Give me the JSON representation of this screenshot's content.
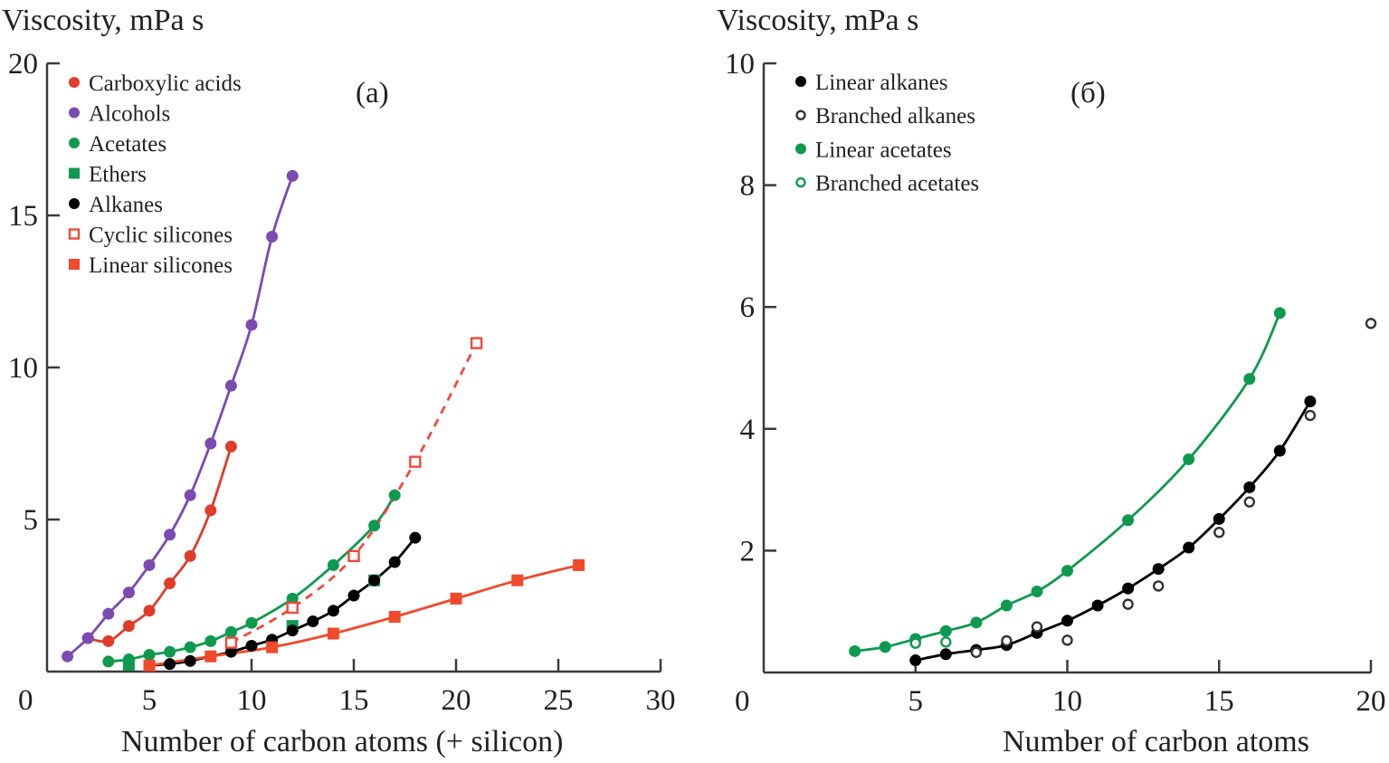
{
  "chart_data": [
    {
      "type": "line",
      "panel_label": "(a)",
      "title": "",
      "ylabel": "Viscosity, mPa s",
      "xlabel": "Number of carbon atoms (+ silicon)",
      "xlim": [
        0,
        30
      ],
      "ylim": [
        0,
        20
      ],
      "xticks": [
        0,
        5,
        10,
        15,
        20,
        25,
        30
      ],
      "yticks": [
        0,
        5,
        10,
        15,
        20
      ],
      "ytick_labels_shown": [
        "5",
        "10",
        "15",
        "20"
      ],
      "grid": false,
      "legend_position": "top-left",
      "series": [
        {
          "name": "Carboxylic acids",
          "color": "#e03c2a",
          "marker": "circle-filled",
          "line": "solid",
          "x": [
            2,
            3,
            4,
            5,
            6,
            7,
            8,
            9
          ],
          "y": [
            1.1,
            1.0,
            1.5,
            2.0,
            2.9,
            3.8,
            5.3,
            7.4
          ]
        },
        {
          "name": "Alcohols",
          "color": "#7a4bb0",
          "marker": "circle-filled",
          "line": "solid",
          "x": [
            1,
            2,
            3,
            4,
            5,
            6,
            7,
            8,
            9,
            10,
            11,
            12
          ],
          "y": [
            0.5,
            1.1,
            1.9,
            2.6,
            3.5,
            4.5,
            5.8,
            7.5,
            9.4,
            11.4,
            14.3,
            16.3
          ]
        },
        {
          "name": "Acetates",
          "color": "#0e9a4e",
          "marker": "circle-filled",
          "line": "solid",
          "x": [
            3,
            4,
            5,
            6,
            7,
            8,
            9,
            10,
            12,
            14,
            16,
            17
          ],
          "y": [
            0.33,
            0.4,
            0.55,
            0.65,
            0.8,
            1.0,
            1.3,
            1.6,
            2.4,
            3.5,
            4.8,
            5.8
          ]
        },
        {
          "name": "Ethers",
          "color": "#0e9a4e",
          "marker": "square-filled",
          "line": "none",
          "x": [
            4,
            12,
            16
          ],
          "y": [
            0.22,
            1.5,
            3.0
          ]
        },
        {
          "name": "Alkanes",
          "color": "#000000",
          "marker": "circle-filled",
          "line": "solid",
          "x": [
            5,
            6,
            7,
            8,
            9,
            10,
            11,
            12,
            13,
            14,
            15,
            16,
            17,
            18
          ],
          "y": [
            0.2,
            0.25,
            0.35,
            0.5,
            0.65,
            0.85,
            1.05,
            1.35,
            1.65,
            2.0,
            2.5,
            3.0,
            3.6,
            4.4
          ]
        },
        {
          "name": "Cyclic silicones",
          "color": "#f04a3a",
          "marker": "square-open",
          "line": "dashed",
          "x": [
            9,
            12,
            15,
            18,
            21
          ],
          "y": [
            0.95,
            2.1,
            3.8,
            6.9,
            10.8
          ]
        },
        {
          "name": "Linear silicones",
          "color": "#f04a2a",
          "marker": "square-filled",
          "line": "solid",
          "x": [
            5,
            8,
            11,
            14,
            17,
            20,
            23,
            26
          ],
          "y": [
            0.2,
            0.5,
            0.8,
            1.25,
            1.8,
            2.4,
            3.0,
            3.5
          ]
        }
      ]
    },
    {
      "type": "line",
      "panel_label": "(б)",
      "title": "",
      "ylabel": "Viscosity, mPa s",
      "xlabel": "Number of carbon atoms",
      "xlim": [
        0,
        20
      ],
      "ylim": [
        0,
        10
      ],
      "xticks": [
        0,
        5,
        10,
        15,
        20
      ],
      "yticks": [
        0,
        2,
        4,
        6,
        8,
        10
      ],
      "ytick_labels_shown": [
        "2",
        "4",
        "6",
        "8",
        "10"
      ],
      "grid": false,
      "legend_position": "top-left",
      "series": [
        {
          "name": "Linear alkanes",
          "color": "#000000",
          "marker": "circle-filled",
          "line": "solid",
          "x": [
            5,
            6,
            7,
            8,
            9,
            10,
            11,
            12,
            13,
            14,
            15,
            16,
            17,
            18
          ],
          "y": [
            0.2,
            0.3,
            0.37,
            0.45,
            0.65,
            0.85,
            1.1,
            1.38,
            1.7,
            2.05,
            2.52,
            3.04,
            3.64,
            4.45
          ]
        },
        {
          "name": "Branched alkanes",
          "color": "#333333",
          "marker": "circle-open",
          "line": "none",
          "x": [
            7,
            8,
            9,
            10,
            12,
            13,
            15,
            16,
            18,
            20
          ],
          "y": [
            0.33,
            0.52,
            0.75,
            0.53,
            1.12,
            1.42,
            2.3,
            2.8,
            4.22,
            5.73
          ]
        },
        {
          "name": "Linear acetates",
          "color": "#0e9a4e",
          "marker": "circle-filled",
          "line": "solid",
          "x": [
            3,
            4,
            5,
            6,
            7,
            8,
            9,
            10,
            12,
            14,
            16,
            17
          ],
          "y": [
            0.35,
            0.42,
            0.55,
            0.68,
            0.82,
            1.1,
            1.33,
            1.67,
            2.5,
            3.5,
            4.82,
            5.9
          ]
        },
        {
          "name": "Branched acetates",
          "color": "#0e9a4e",
          "marker": "circle-open",
          "line": "none",
          "x": [
            5,
            6
          ],
          "y": [
            0.48,
            0.5
          ]
        }
      ]
    }
  ]
}
